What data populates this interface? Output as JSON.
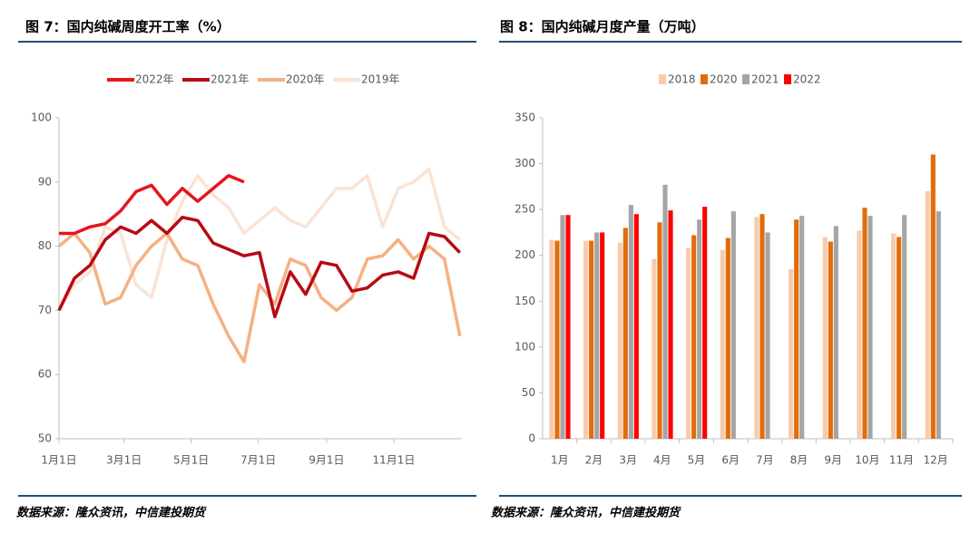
{
  "chart_data": [
    {
      "type": "line",
      "title": "图 7：国内纯碱周度开工率（%）",
      "source": "数据来源：隆众资讯，中信建投期货",
      "x": [
        0,
        14,
        28,
        42,
        56,
        70,
        84,
        98,
        112,
        126,
        140,
        154,
        168,
        182,
        196,
        210,
        224,
        238,
        252,
        266,
        280,
        294,
        308,
        322,
        336,
        350,
        364
      ],
      "xlim": [
        0,
        365
      ],
      "xticks": [
        {
          "value": 0,
          "label": "1月1日"
        },
        {
          "value": 59,
          "label": "3月1日"
        },
        {
          "value": 120,
          "label": "5月1日"
        },
        {
          "value": 181,
          "label": "7月1日"
        },
        {
          "value": 243,
          "label": "9月1日"
        },
        {
          "value": 304,
          "label": "11月1日"
        }
      ],
      "ylim": [
        50,
        100
      ],
      "yticks": [
        50,
        60,
        70,
        80,
        90,
        100
      ],
      "legend": "top",
      "series": [
        {
          "name": "2022年",
          "color": "#e8141c",
          "values": [
            82,
            82,
            83,
            83.5,
            85.5,
            88.5,
            89.5,
            86.5,
            89,
            87,
            89,
            91,
            90,
            null,
            null,
            null,
            null,
            null,
            null,
            null,
            null,
            null,
            null,
            null,
            null,
            null,
            null
          ]
        },
        {
          "name": "2021年",
          "color": "#b70a13",
          "values": [
            70,
            75,
            77,
            81,
            83,
            82,
            84,
            82,
            84.5,
            84,
            80.5,
            79.5,
            78.5,
            79,
            69,
            76,
            72.5,
            77.5,
            77,
            73,
            73.5,
            75.5,
            76,
            75,
            82,
            81.5,
            79
          ]
        },
        {
          "name": "2020年",
          "color": "#f4b183",
          "values": [
            80,
            82,
            79,
            71,
            72,
            77,
            80,
            82,
            78,
            77,
            71,
            66,
            62,
            74,
            71,
            78,
            77,
            72,
            70,
            72,
            78,
            78.5,
            81,
            78,
            80,
            78,
            66
          ]
        },
        {
          "name": "2019年",
          "color": "#fbe3d4",
          "values": [
            70,
            74,
            76,
            83,
            82,
            74,
            72,
            81,
            87,
            91,
            88,
            86,
            82,
            84,
            86,
            84,
            83,
            86,
            89,
            89,
            91,
            83,
            89,
            90,
            92,
            83,
            81
          ]
        }
      ]
    },
    {
      "type": "bar",
      "title": "图 8：国内纯碱月度产量（万吨）",
      "source": "数据来源：隆众资讯，中信建投期货",
      "categories": [
        "1月",
        "2月",
        "3月",
        "4月",
        "5月",
        "6月",
        "7月",
        "8月",
        "9月",
        "10月",
        "11月",
        "12月"
      ],
      "ylim": [
        0,
        350
      ],
      "yticks": [
        0,
        50,
        100,
        150,
        200,
        250,
        300,
        350
      ],
      "legend": "top",
      "series": [
        {
          "name": "2018",
          "color": "#f8cbad",
          "values": [
            217,
            216,
            214,
            196,
            208,
            206,
            242,
            185,
            220,
            227,
            224,
            270
          ]
        },
        {
          "name": "2020",
          "color": "#e36c09",
          "values": [
            216,
            216,
            230,
            236,
            222,
            219,
            245,
            239,
            215,
            252,
            220,
            310
          ]
        },
        {
          "name": "2021",
          "color": "#a5a5a5",
          "values": [
            244,
            225,
            255,
            277,
            239,
            248,
            225,
            243,
            232,
            243,
            244,
            248
          ]
        },
        {
          "name": "2022",
          "color": "#ff0000",
          "values": [
            244,
            225,
            245,
            249,
            253,
            null,
            null,
            null,
            null,
            null,
            null,
            null
          ]
        }
      ]
    }
  ]
}
